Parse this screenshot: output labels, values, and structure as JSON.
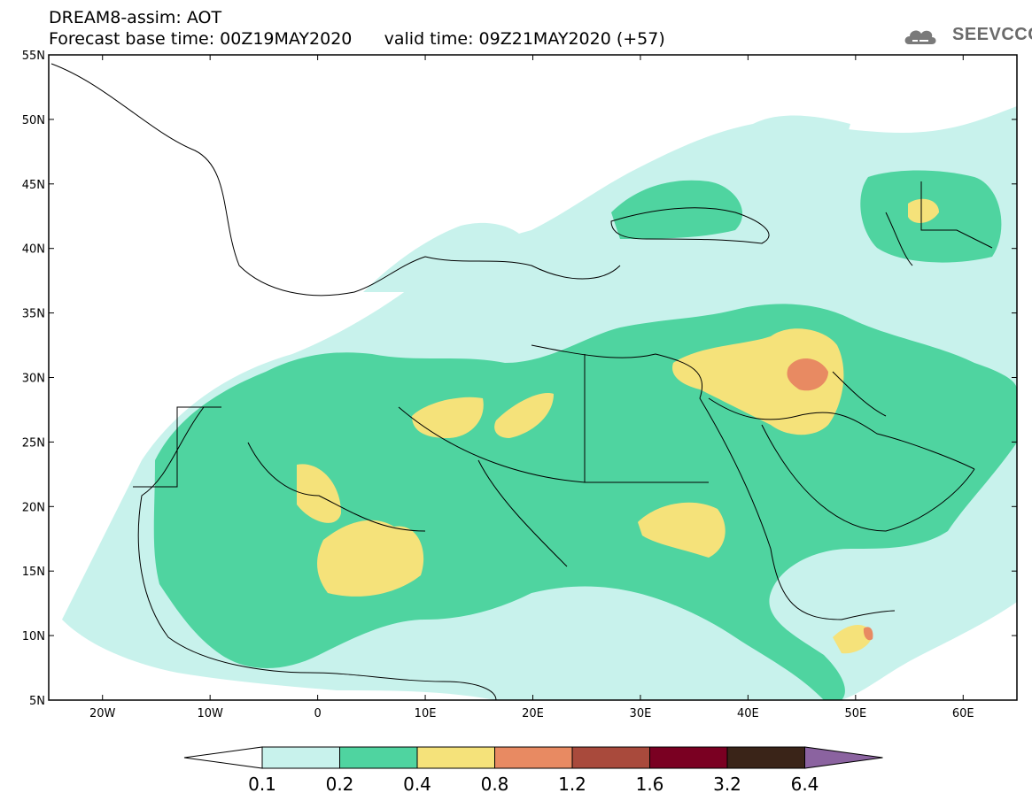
{
  "header": {
    "title_line1": "DREAM8-assim: AOT",
    "base_label": "Forecast base time: 00Z19MAY2020",
    "valid_label": "valid time: 09Z21MAY2020 (+57)"
  },
  "logo": {
    "text": "SEEVCCC",
    "icon": "cloud-icon"
  },
  "map": {
    "lon_range": [
      -25,
      65
    ],
    "lat_range": [
      5,
      55
    ],
    "lat_ticks": [
      {
        "value": 55,
        "label": "55N"
      },
      {
        "value": 50,
        "label": "50N"
      },
      {
        "value": 45,
        "label": "45N"
      },
      {
        "value": 40,
        "label": "40N"
      },
      {
        "value": 35,
        "label": "35N"
      },
      {
        "value": 30,
        "label": "30N"
      },
      {
        "value": 25,
        "label": "25N"
      },
      {
        "value": 20,
        "label": "20N"
      },
      {
        "value": 15,
        "label": "15N"
      },
      {
        "value": 10,
        "label": "10N"
      },
      {
        "value": 5,
        "label": "5N"
      }
    ],
    "lon_ticks": [
      {
        "value": -20,
        "label": "20W"
      },
      {
        "value": -10,
        "label": "10W"
      },
      {
        "value": 0,
        "label": "0"
      },
      {
        "value": 10,
        "label": "10E"
      },
      {
        "value": 20,
        "label": "20E"
      },
      {
        "value": 30,
        "label": "30E"
      },
      {
        "value": 40,
        "label": "40E"
      },
      {
        "value": 50,
        "label": "50E"
      },
      {
        "value": 60,
        "label": "60E"
      }
    ]
  },
  "colorbar": {
    "levels": [
      "0.1",
      "0.2",
      "0.4",
      "0.8",
      "1.2",
      "1.6",
      "3.2",
      "6.4"
    ],
    "colors": [
      "#c8f2ec",
      "#4fd4a0",
      "#f5e27a",
      "#e88a62",
      "#a94a3c",
      "#7a0022",
      "#3a2418",
      "#8b63a0"
    ],
    "under_color": "#ffffff"
  }
}
